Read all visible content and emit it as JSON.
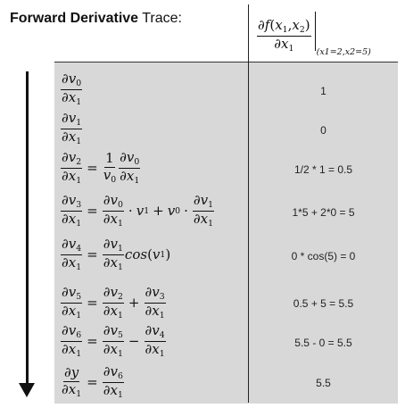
{
  "title": {
    "bold": "Forward Derivative",
    "normal": "Trace:"
  },
  "header": {
    "num_prefix": "∂",
    "num_func": "f",
    "num_args_open": "(",
    "num_x1": "x",
    "num_x1_sub": "1",
    "num_comma": ",",
    "num_x2": "x",
    "num_x2_sub": "2",
    "num_args_close": ")",
    "den_prefix": "∂",
    "den_var": "x",
    "den_sub": "1",
    "eval_point": "(x1=2,x2=5)"
  },
  "rows": [
    {
      "id": "v0",
      "value": "1"
    },
    {
      "id": "v1",
      "value": "0"
    },
    {
      "id": "v2",
      "value": "1/2 * 1 = 0.5"
    },
    {
      "id": "v3",
      "value": "1*5 + 2*0 = 5"
    },
    {
      "id": "v4",
      "value": "0 * cos(5) = 0"
    },
    {
      "id": "v5",
      "value": "0.5 + 5 = 5.5"
    },
    {
      "id": "v6",
      "value": "5.5 - 0 = 5.5"
    },
    {
      "id": "y",
      "value": "5.5"
    }
  ],
  "math": {
    "partial": "∂",
    "v": "v",
    "x": "x",
    "y": "y",
    "one": "1",
    "equals": "=",
    "plus": "+",
    "minus": "−",
    "cdot": "·",
    "cos": "cos",
    "lparen": "(",
    "rparen": ")",
    "s0": "0",
    "s1": "1",
    "s2": "2",
    "s3": "3",
    "s4": "4",
    "s5": "5",
    "s6": "6"
  }
}
